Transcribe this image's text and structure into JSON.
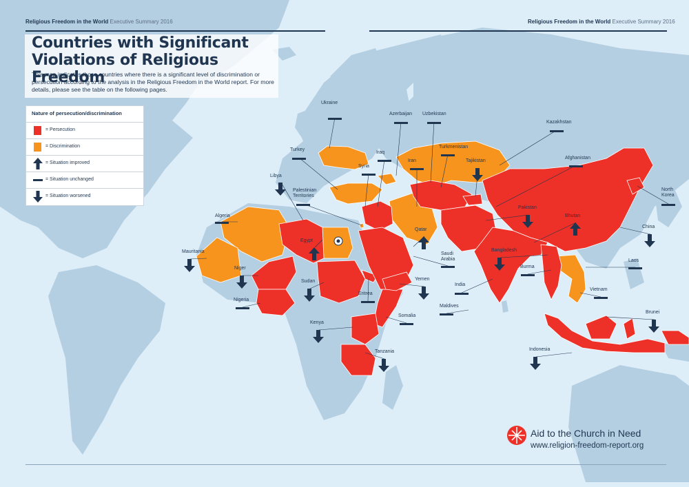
{
  "header": {
    "left_brand": "Religious Freedom in the World",
    "left_sub": "Executive Summary 2016",
    "right_brand": "Religious Freedom in the World",
    "right_sub": "Executive Summary 2016"
  },
  "title": "Countries with Significant Violations of Religious Freedom",
  "description": "This map indicates those countries where there is a significant level of discrimination or persecution according to the analysis in the Religious Freedom in the World report. For more details, please see the table on the following pages.",
  "legend": {
    "title": "Nature of persecution/discrimination",
    "items": [
      {
        "label": "= Persecution",
        "color": "#ee3128",
        "symbol": "swatch"
      },
      {
        "label": "= Discrimination",
        "color": "#f7941d",
        "symbol": "swatch"
      },
      {
        "label": "= Situation improved",
        "symbol": "arrow-up-icon"
      },
      {
        "label": "= Situation unchanged",
        "symbol": "dash-icon"
      },
      {
        "label": "= Situation worsened",
        "symbol": "arrow-down-icon"
      }
    ]
  },
  "colors": {
    "persecution": "#ee3128",
    "discrimination": "#f7941d",
    "ocean": "#ddeef8",
    "land": "#b5cfe2",
    "marker": "#1f3550"
  },
  "countries": [
    {
      "name": "Ukraine",
      "status": "discrimination",
      "trend": "unchanged"
    },
    {
      "name": "Azerbaijan",
      "status": "discrimination",
      "trend": "unchanged"
    },
    {
      "name": "Uzbekistan",
      "status": "persecution",
      "trend": "unchanged"
    },
    {
      "name": "Kazakhstan",
      "status": "discrimination",
      "trend": "unchanged"
    },
    {
      "name": "Turkmenistan",
      "status": "persecution",
      "trend": "unchanged"
    },
    {
      "name": "Turkey",
      "status": "discrimination",
      "trend": "unchanged"
    },
    {
      "name": "Iraq",
      "status": "persecution",
      "trend": "unchanged"
    },
    {
      "name": "Syria",
      "status": "persecution",
      "trend": "unchanged"
    },
    {
      "name": "Iran",
      "status": "persecution",
      "trend": "unchanged"
    },
    {
      "name": "Tajikistan",
      "status": "persecution",
      "trend": "worsened"
    },
    {
      "name": "Afghanistan",
      "status": "persecution",
      "trend": "unchanged"
    },
    {
      "name": "Libya",
      "status": "persecution",
      "trend": "worsened"
    },
    {
      "name": "Palestinian Territories",
      "status": "discrimination",
      "trend": "unchanged"
    },
    {
      "name": "North Korea",
      "status": "persecution",
      "trend": "unchanged"
    },
    {
      "name": "Algeria",
      "status": "discrimination",
      "trend": "unchanged"
    },
    {
      "name": "Egypt",
      "status": "discrimination",
      "trend": "improved"
    },
    {
      "name": "Pakistan",
      "status": "persecution",
      "trend": "worsened"
    },
    {
      "name": "Bhutan",
      "status": "discrimination",
      "trend": "improved"
    },
    {
      "name": "China",
      "status": "persecution",
      "trend": "worsened"
    },
    {
      "name": "Qatar",
      "status": "discrimination",
      "trend": "improved"
    },
    {
      "name": "Mauritania",
      "status": "discrimination",
      "trend": "worsened"
    },
    {
      "name": "Saudi Arabia",
      "status": "persecution",
      "trend": "unchanged"
    },
    {
      "name": "Bangladesh",
      "status": "persecution",
      "trend": "worsened"
    },
    {
      "name": "Laos",
      "status": "discrimination",
      "trend": "unchanged"
    },
    {
      "name": "Niger",
      "status": "persecution",
      "trend": "worsened"
    },
    {
      "name": "Burma",
      "status": "persecution",
      "trend": "unchanged"
    },
    {
      "name": "Sudan",
      "status": "persecution",
      "trend": "worsened"
    },
    {
      "name": "Yemen",
      "status": "persecution",
      "trend": "worsened"
    },
    {
      "name": "India",
      "status": "persecution",
      "trend": "unchanged"
    },
    {
      "name": "Vietnam",
      "status": "discrimination",
      "trend": "unchanged"
    },
    {
      "name": "Eritrea",
      "status": "persecution",
      "trend": "unchanged"
    },
    {
      "name": "Nigeria",
      "status": "persecution",
      "trend": "unchanged"
    },
    {
      "name": "Maldives",
      "status": "persecution",
      "trend": "unchanged"
    },
    {
      "name": "Somalia",
      "status": "persecution",
      "trend": "unchanged"
    },
    {
      "name": "Brunei",
      "status": "persecution",
      "trend": "worsened"
    },
    {
      "name": "Kenya",
      "status": "persecution",
      "trend": "worsened"
    },
    {
      "name": "Indonesia",
      "status": "persecution",
      "trend": "worsened"
    },
    {
      "name": "Tanzania",
      "status": "persecution",
      "trend": "worsened"
    }
  ],
  "footer": {
    "organization": "Aid to the Church in Need",
    "url": "www.religion-freedom-report.org"
  }
}
